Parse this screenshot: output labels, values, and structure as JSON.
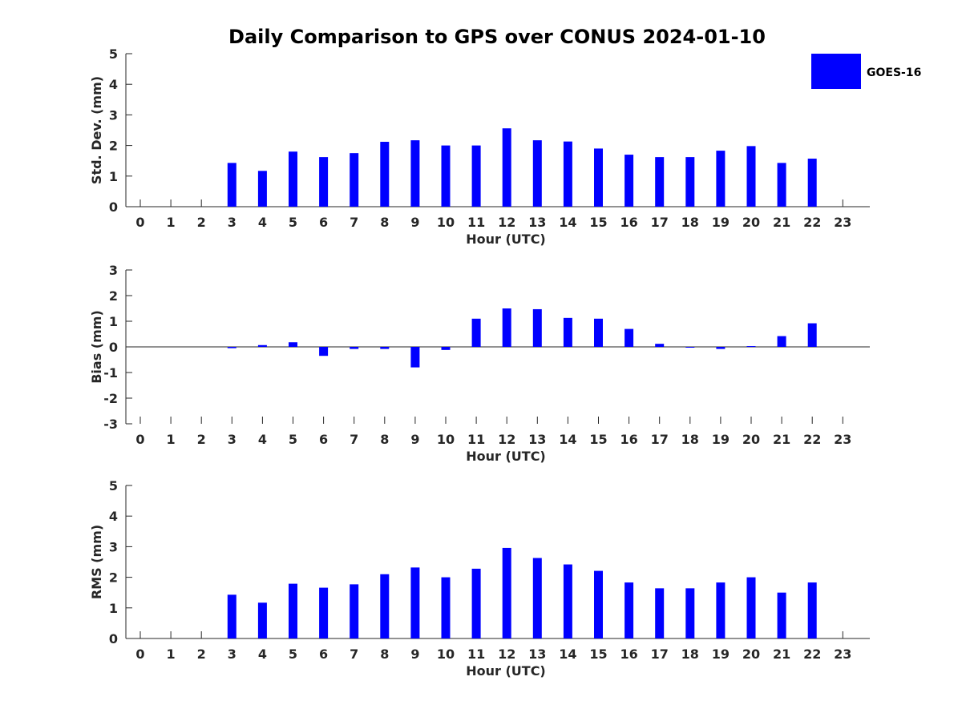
{
  "title": "Daily Comparison to GPS over CONUS 2024-01-10",
  "legend": {
    "label": "GOES-16",
    "color": "#0000ff"
  },
  "bar_color": "#0000ff",
  "chart_data": [
    {
      "type": "bar",
      "ylabel": "Std. Dev. (mm)",
      "xlabel": "Hour (UTC)",
      "ylim": [
        0,
        5
      ],
      "yticks": [
        0,
        1,
        2,
        3,
        4,
        5
      ],
      "categories": [
        "0",
        "1",
        "2",
        "3",
        "4",
        "5",
        "6",
        "7",
        "8",
        "9",
        "10",
        "11",
        "12",
        "13",
        "14",
        "15",
        "16",
        "17",
        "18",
        "19",
        "20",
        "21",
        "22",
        "23"
      ],
      "values": [
        null,
        null,
        null,
        1.43,
        1.17,
        1.8,
        1.62,
        1.75,
        2.12,
        2.17,
        2.0,
        2.0,
        2.56,
        2.17,
        2.13,
        1.9,
        1.7,
        1.62,
        1.62,
        1.83,
        1.98,
        1.43,
        1.57,
        null
      ]
    },
    {
      "type": "bar",
      "ylabel": "Bias (mm)",
      "xlabel": "Hour (UTC)",
      "ylim": [
        -3,
        3
      ],
      "yticks": [
        -3,
        -2,
        -1,
        0,
        1,
        2,
        3
      ],
      "categories": [
        "0",
        "1",
        "2",
        "3",
        "4",
        "5",
        "6",
        "7",
        "8",
        "9",
        "10",
        "11",
        "12",
        "13",
        "14",
        "15",
        "16",
        "17",
        "18",
        "19",
        "20",
        "21",
        "22",
        "23"
      ],
      "values": [
        null,
        null,
        null,
        -0.05,
        0.07,
        0.18,
        -0.35,
        -0.08,
        -0.08,
        -0.8,
        -0.12,
        1.1,
        1.5,
        1.47,
        1.13,
        1.1,
        0.7,
        0.12,
        -0.02,
        -0.08,
        0.03,
        0.42,
        0.92,
        null
      ]
    },
    {
      "type": "bar",
      "ylabel": "RMS (mm)",
      "xlabel": "Hour (UTC)",
      "ylim": [
        0,
        5
      ],
      "yticks": [
        0,
        1,
        2,
        3,
        4,
        5
      ],
      "categories": [
        "0",
        "1",
        "2",
        "3",
        "4",
        "5",
        "6",
        "7",
        "8",
        "9",
        "10",
        "11",
        "12",
        "13",
        "14",
        "15",
        "16",
        "17",
        "18",
        "19",
        "20",
        "21",
        "22",
        "23"
      ],
      "values": [
        null,
        null,
        null,
        1.43,
        1.17,
        1.79,
        1.66,
        1.77,
        2.1,
        2.32,
        2.0,
        2.28,
        2.96,
        2.63,
        2.42,
        2.21,
        1.83,
        1.64,
        1.64,
        1.83,
        2.0,
        1.5,
        1.83,
        null
      ]
    }
  ]
}
